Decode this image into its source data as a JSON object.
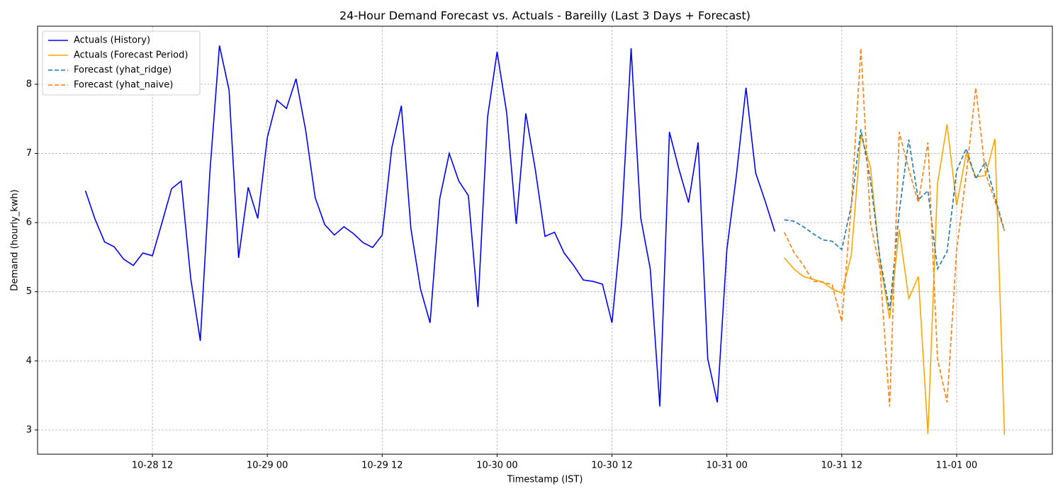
{
  "chart_data": {
    "type": "line",
    "title": "24-Hour Demand Forecast vs. Actuals - Bareilly (Last 3 Days + Forecast)",
    "xlabel": "Timestamp (IST)",
    "ylabel": "Demand (hourly_kwh)",
    "xlim": [
      "10-28 00",
      "11-01 10"
    ],
    "xticks": [
      "10-28 12",
      "10-29 00",
      "10-29 12",
      "10-30 00",
      "10-30 12",
      "10-31 00",
      "10-31 12",
      "11-01 00"
    ],
    "ylim": [
      2.65,
      8.84
    ],
    "yticks": [
      3,
      4,
      5,
      6,
      7,
      8
    ],
    "grid": true,
    "legend": "upper left",
    "series": [
      {
        "name": "Actuals (History)",
        "color": "#0000ff",
        "linestyle": "solid",
        "x": [
          "10-28 05",
          "10-28 06",
          "10-28 07",
          "10-28 08",
          "10-28 09",
          "10-28 10",
          "10-28 11",
          "10-28 12",
          "10-28 13",
          "10-28 14",
          "10-28 15",
          "10-28 16",
          "10-28 17",
          "10-28 18",
          "10-28 19",
          "10-28 20",
          "10-28 21",
          "10-28 22",
          "10-28 23",
          "10-29 00",
          "10-29 01",
          "10-29 02",
          "10-29 03",
          "10-29 04",
          "10-29 05",
          "10-29 06",
          "10-29 07",
          "10-29 08",
          "10-29 09",
          "10-29 10",
          "10-29 11",
          "10-29 12",
          "10-29 13",
          "10-29 14",
          "10-29 15",
          "10-29 16",
          "10-29 17",
          "10-29 18",
          "10-29 19",
          "10-29 20",
          "10-29 21",
          "10-29 22",
          "10-29 23",
          "10-30 00",
          "10-30 01",
          "10-30 02",
          "10-30 03",
          "10-30 04",
          "10-30 05",
          "10-30 06",
          "10-30 07",
          "10-30 08",
          "10-30 09",
          "10-30 10",
          "10-30 11",
          "10-30 12",
          "10-30 13",
          "10-30 14",
          "10-30 15",
          "10-30 16",
          "10-30 17",
          "10-30 18",
          "10-30 19",
          "10-30 20",
          "10-30 21",
          "10-30 22",
          "10-30 23",
          "10-31 00",
          "10-31 01",
          "10-31 02",
          "10-31 03",
          "10-31 04",
          "10-31 05"
        ],
        "values": [
          6.46,
          6.05,
          5.72,
          5.65,
          5.47,
          5.38,
          5.56,
          5.52,
          6.0,
          6.49,
          6.6,
          5.19,
          4.29,
          6.73,
          8.56,
          7.92,
          5.49,
          6.51,
          6.06,
          7.23,
          7.77,
          7.65,
          8.08,
          7.34,
          6.36,
          5.97,
          5.82,
          5.94,
          5.84,
          5.71,
          5.64,
          5.82,
          7.08,
          7.69,
          5.91,
          5.04,
          4.55,
          6.34,
          7.0,
          6.6,
          6.39,
          4.78,
          7.52,
          8.47,
          7.59,
          5.98,
          7.58,
          6.76,
          5.8,
          5.86,
          5.56,
          5.38,
          5.17,
          5.15,
          5.11,
          4.55,
          5.99,
          8.52,
          6.07,
          5.33,
          3.34,
          7.31,
          6.77,
          6.29,
          7.16,
          4.03,
          3.4,
          5.61,
          6.69,
          7.95,
          6.72,
          6.31,
          5.87
        ]
      },
      {
        "name": "Actuals (Forecast Period)",
        "color": "#ffa500",
        "linestyle": "solid",
        "x": [
          "10-31 06",
          "10-31 07",
          "10-31 08",
          "10-31 09",
          "10-31 10",
          "10-31 11",
          "10-31 12",
          "10-31 13",
          "10-31 14",
          "10-31 15",
          "10-31 16",
          "10-31 17",
          "10-31 18",
          "10-31 19",
          "10-31 20",
          "10-31 21",
          "10-31 22",
          "10-31 23",
          "11-01 00",
          "11-01 01",
          "11-01 02",
          "11-01 03",
          "11-01 04",
          "11-01 05"
        ],
        "values": [
          5.49,
          5.33,
          5.22,
          5.18,
          5.14,
          5.04,
          4.98,
          5.53,
          7.27,
          6.8,
          5.43,
          4.61,
          5.9,
          4.9,
          5.22,
          2.94,
          6.56,
          7.42,
          6.25,
          7.0,
          6.66,
          6.68,
          7.21,
          2.93
        ]
      },
      {
        "name": "Forecast (yhat_ridge)",
        "color": "#1f77b4",
        "linestyle": "dashed",
        "x": [
          "10-31 06",
          "10-31 07",
          "10-31 08",
          "10-31 09",
          "10-31 10",
          "10-31 11",
          "10-31 12",
          "10-31 13",
          "10-31 14",
          "10-31 15",
          "10-31 16",
          "10-31 17",
          "10-31 18",
          "10-31 19",
          "10-31 20",
          "10-31 21",
          "10-31 22",
          "10-31 23",
          "11-01 00",
          "11-01 01",
          "11-01 02",
          "11-01 03",
          "11-01 04",
          "11-01 05"
        ],
        "values": [
          6.04,
          6.02,
          5.94,
          5.84,
          5.75,
          5.73,
          5.61,
          6.25,
          7.35,
          6.61,
          5.48,
          4.73,
          6.15,
          7.2,
          6.33,
          6.46,
          5.33,
          5.58,
          6.75,
          7.07,
          6.63,
          6.88,
          6.37,
          5.88
        ]
      },
      {
        "name": "Forecast (yhat_naive)",
        "color": "#ff7f0e",
        "linestyle": "dashed",
        "x": [
          "10-31 06",
          "10-31 07",
          "10-31 08",
          "10-31 09",
          "10-31 10",
          "10-31 11",
          "10-31 12",
          "10-31 13",
          "10-31 14",
          "10-31 15",
          "10-31 16",
          "10-31 17",
          "10-31 18",
          "10-31 19",
          "10-31 20",
          "10-31 21",
          "10-31 22",
          "10-31 23",
          "11-01 00",
          "11-01 01",
          "11-01 02",
          "11-01 03",
          "11-01 04",
          "11-01 05"
        ],
        "values": [
          5.86,
          5.57,
          5.38,
          5.15,
          5.14,
          5.1,
          4.57,
          6.25,
          8.52,
          5.99,
          5.33,
          3.34,
          7.31,
          6.77,
          6.29,
          7.16,
          4.03,
          3.4,
          5.61,
          6.69,
          7.95,
          6.72,
          6.31,
          5.87
        ]
      }
    ]
  }
}
